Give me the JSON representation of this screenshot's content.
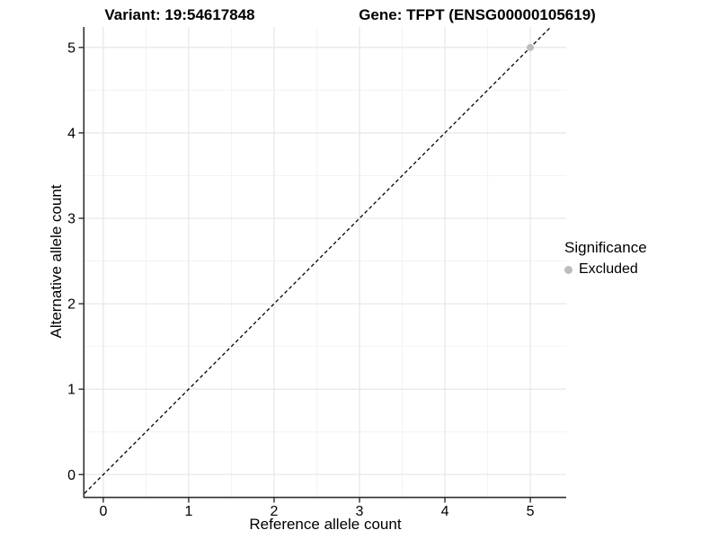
{
  "chart_data": {
    "type": "scatter",
    "title_left": "Variant: 19:54617848",
    "title_right": "Gene: TFPT (ENSG00000105619)",
    "xlabel": "Reference allele count",
    "ylabel": "Alternative allele count",
    "xlim": [
      -0.22,
      5.42
    ],
    "ylim": [
      -0.26,
      5.24
    ],
    "x_ticks": [
      0,
      1,
      2,
      3,
      4,
      5
    ],
    "y_ticks": [
      0,
      1,
      2,
      3,
      4,
      5
    ],
    "x_minor_ticks": [
      0.5,
      1.5,
      2.5,
      3.5,
      4.5
    ],
    "y_minor_ticks": [
      0.5,
      1.5,
      2.5,
      3.5,
      4.5
    ],
    "grid": true,
    "reference_line": {
      "slope": 1,
      "intercept": 0,
      "style": "dashed",
      "color": "#000000"
    },
    "series": [
      {
        "name": "Excluded",
        "color": "#bdbdbd",
        "points": [
          {
            "x": 5,
            "y": 5
          }
        ]
      }
    ],
    "legend": {
      "title": "Significance",
      "position": "right",
      "items": [
        {
          "label": "Excluded",
          "color": "#bdbdbd"
        }
      ]
    },
    "colors": {
      "background": "#ffffff",
      "grid_major": "#e8e8e8",
      "grid_minor": "#f3f3f3",
      "axis": "#2f2f2f",
      "text": "#000000"
    }
  }
}
